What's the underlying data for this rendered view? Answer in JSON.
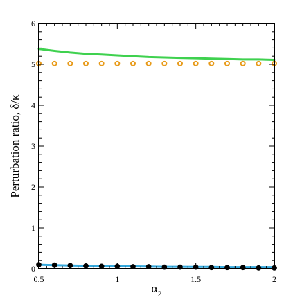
{
  "chart_data": {
    "type": "line",
    "title": "",
    "xlabel": "α",
    "xlabel_subscript": "2",
    "ylabel": "Perturbation ratio, δ/κ",
    "xlim": [
      0.5,
      2
    ],
    "ylim": [
      0,
      6
    ],
    "x_ticks": [
      "0.5",
      "1",
      "1.5",
      "2"
    ],
    "y_ticks": [
      "0",
      "1",
      "2",
      "3",
      "4",
      "5",
      "6"
    ],
    "grid": false,
    "legend": "none",
    "series": [
      {
        "style": "line",
        "color": "#3fd14f",
        "x": [
          0.5,
          0.6,
          0.7,
          0.8,
          0.9,
          1.0,
          1.1,
          1.2,
          1.3,
          1.4,
          1.5,
          1.6,
          1.7,
          1.8,
          1.9,
          2.0
        ],
        "y": [
          5.38,
          5.33,
          5.29,
          5.26,
          5.24,
          5.22,
          5.2,
          5.18,
          5.17,
          5.16,
          5.15,
          5.14,
          5.13,
          5.12,
          5.12,
          5.11
        ]
      },
      {
        "style": "markers",
        "marker": "open-circle",
        "color": "#e89b1a",
        "x": [
          0.5,
          0.6,
          0.7,
          0.8,
          0.9,
          1.0,
          1.1,
          1.2,
          1.3,
          1.4,
          1.5,
          1.6,
          1.7,
          1.8,
          1.9,
          2.0
        ],
        "y": [
          5.02,
          5.02,
          5.02,
          5.02,
          5.02,
          5.02,
          5.02,
          5.02,
          5.02,
          5.02,
          5.02,
          5.02,
          5.02,
          5.02,
          5.02,
          5.02
        ]
      },
      {
        "style": "line",
        "color": "#35a8dc",
        "x": [
          0.5,
          0.6,
          0.7,
          0.8,
          0.9,
          1.0,
          1.1,
          1.2,
          1.3,
          1.4,
          1.5,
          1.6,
          1.7,
          1.8,
          1.9,
          2.0
        ],
        "y": [
          0.1,
          0.09,
          0.08,
          0.075,
          0.07,
          0.065,
          0.06,
          0.055,
          0.05,
          0.05,
          0.045,
          0.045,
          0.04,
          0.04,
          0.04,
          0.04
        ]
      },
      {
        "style": "markers",
        "marker": "filled-circle",
        "color": "#000000",
        "x": [
          0.5,
          0.6,
          0.7,
          0.8,
          0.9,
          1.0,
          1.1,
          1.2,
          1.3,
          1.4,
          1.5,
          1.6,
          1.7,
          1.8,
          1.9,
          2.0
        ],
        "y": [
          0.1,
          0.09,
          0.08,
          0.07,
          0.06,
          0.06,
          0.05,
          0.05,
          0.04,
          0.04,
          0.04,
          0.03,
          0.03,
          0.03,
          0.02,
          0.02
        ]
      }
    ]
  }
}
